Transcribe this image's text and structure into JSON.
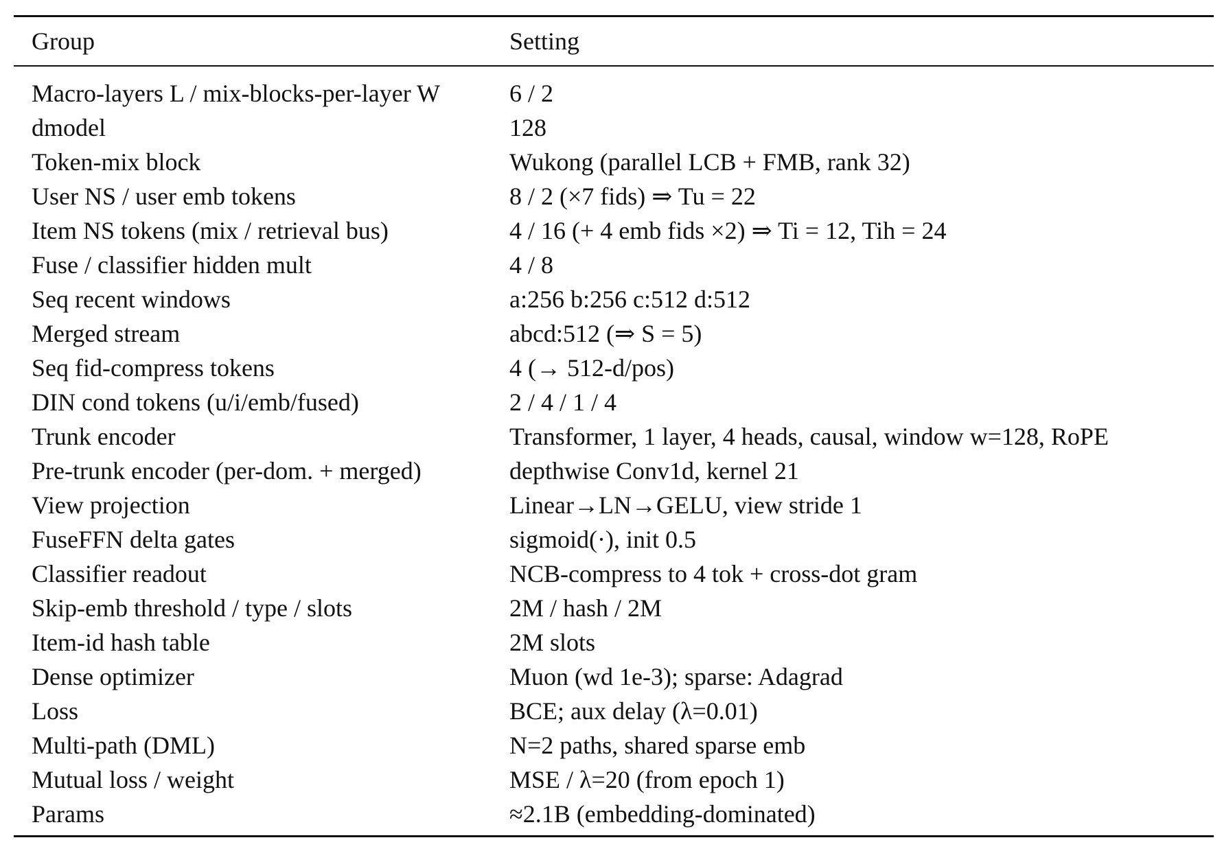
{
  "table": {
    "header": {
      "group": "Group",
      "setting": "Setting"
    },
    "rows": [
      {
        "group": "Macro-layers L / mix-blocks-per-layer W",
        "setting": "6 / 2"
      },
      {
        "group": "dmodel",
        "setting": "128"
      },
      {
        "group": "Token-mix block",
        "setting": "Wukong (parallel LCB + FMB, rank 32)"
      },
      {
        "group": "User NS / user emb tokens",
        "setting": "8 / 2 (×7 fids) ⇒ Tu = 22"
      },
      {
        "group": "Item NS tokens (mix / retrieval bus)",
        "setting": "4 / 16 (+ 4 emb fids ×2) ⇒ Ti = 12, Tih = 24"
      },
      {
        "group": "Fuse / classifier hidden mult",
        "setting": "4 / 8"
      },
      {
        "group": "Seq recent windows",
        "setting": "a:256 b:256 c:512 d:512"
      },
      {
        "group": "Merged stream",
        "setting": "abcd:512 (⇒ S = 5)"
      },
      {
        "group": "Seq fid-compress tokens",
        "setting": "4 (→ 512-d/pos)"
      },
      {
        "group": "DIN cond tokens (u/i/emb/fused)",
        "setting": "2 / 4 / 1 / 4"
      },
      {
        "group": "Trunk encoder",
        "setting": "Transformer, 1 layer, 4 heads, causal, window w=128, RoPE"
      },
      {
        "group": "Pre-trunk encoder (per-dom. + merged)",
        "setting": "depthwise Conv1d, kernel 21"
      },
      {
        "group": "View projection",
        "setting": "Linear→LN→GELU, view stride 1"
      },
      {
        "group": "FuseFFN delta gates",
        "setting": "sigmoid(·), init 0.5"
      },
      {
        "group": "Classifier readout",
        "setting": "NCB-compress to 4 tok + cross-dot gram"
      },
      {
        "group": "Skip-emb threshold / type / slots",
        "setting": "2M / hash / 2M"
      },
      {
        "group": "Item-id hash table",
        "setting": "2M slots"
      },
      {
        "group": "Dense optimizer",
        "setting": "Muon (wd 1e-3); sparse: Adagrad"
      },
      {
        "group": "Loss",
        "setting": "BCE; aux delay (λ=0.01)"
      },
      {
        "group": "Multi-path (DML)",
        "setting": "N=2 paths, shared sparse emb"
      },
      {
        "group": "Mutual loss / weight",
        "setting": "MSE / λ=20 (from epoch 1)"
      },
      {
        "group": "Params",
        "setting": "≈2.1B (embedding-dominated)"
      }
    ]
  }
}
